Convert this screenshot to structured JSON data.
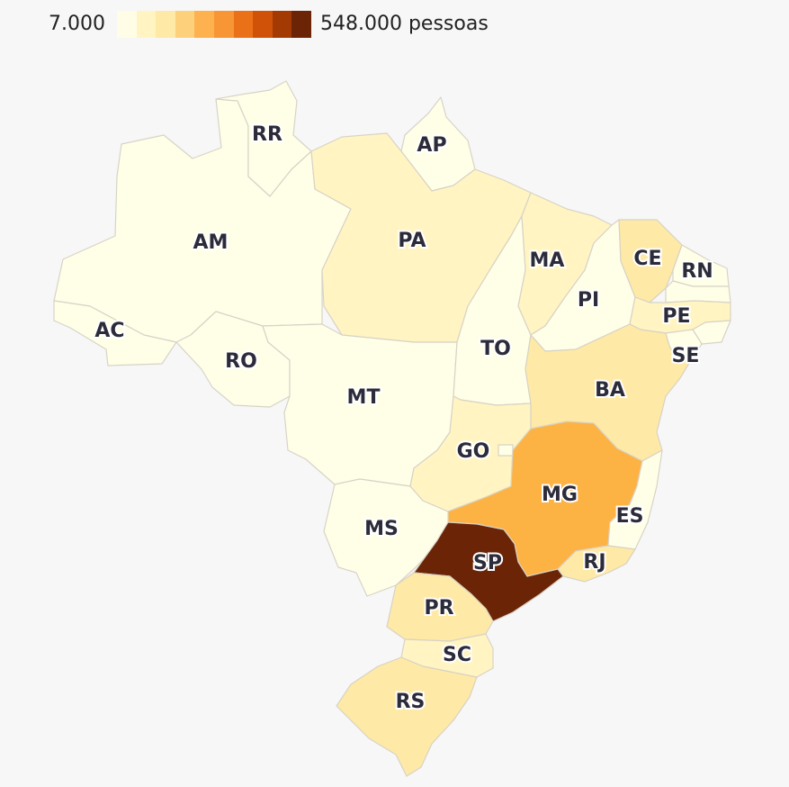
{
  "legend": {
    "min_label": "7.000",
    "max_label": "548.000 pessoas",
    "scale_colors": [
      "#fffde6",
      "#fff4c2",
      "#fee9a6",
      "#fdd17c",
      "#fdb24f",
      "#f89534",
      "#ea7117",
      "#cf5208",
      "#a33a04",
      "#6b2406"
    ]
  },
  "map": {
    "states": [
      {
        "code": "AM",
        "label": "AM",
        "color": "#ffffe8"
      },
      {
        "code": "RR",
        "label": "RR",
        "color": "#ffffe8"
      },
      {
        "code": "AP",
        "label": "AP",
        "color": "#ffffe8"
      },
      {
        "code": "PA",
        "label": "PA",
        "color": "#fff4c2"
      },
      {
        "code": "AC",
        "label": "AC",
        "color": "#ffffe8"
      },
      {
        "code": "RO",
        "label": "RO",
        "color": "#ffffe8"
      },
      {
        "code": "MT",
        "label": "MT",
        "color": "#ffffe8"
      },
      {
        "code": "MS",
        "label": "MS",
        "color": "#ffffe8"
      },
      {
        "code": "TO",
        "label": "TO",
        "color": "#ffffe8"
      },
      {
        "code": "MA",
        "label": "MA",
        "color": "#fff4c2"
      },
      {
        "code": "PI",
        "label": "PI",
        "color": "#ffffe8"
      },
      {
        "code": "CE",
        "label": "CE",
        "color": "#fee9a6"
      },
      {
        "code": "RN",
        "label": "RN",
        "color": "#ffffe8"
      },
      {
        "code": "PB",
        "label": "",
        "color": "#ffffe8"
      },
      {
        "code": "PE",
        "label": "PE",
        "color": "#fff4c2"
      },
      {
        "code": "AL",
        "label": "",
        "color": "#ffffe8"
      },
      {
        "code": "SE",
        "label": "SE",
        "color": "#ffffe8"
      },
      {
        "code": "BA",
        "label": "BA",
        "color": "#fee9a6"
      },
      {
        "code": "GO",
        "label": "GO",
        "color": "#fff4c2"
      },
      {
        "code": "DF",
        "label": "",
        "color": "#ffffe8"
      },
      {
        "code": "MG",
        "label": "MG",
        "color": "#fdb244"
      },
      {
        "code": "ES",
        "label": "ES",
        "color": "#ffffe8"
      },
      {
        "code": "RJ",
        "label": "RJ",
        "color": "#fee9a6"
      },
      {
        "code": "SP",
        "label": "SP",
        "color": "#6b2406"
      },
      {
        "code": "PR",
        "label": "PR",
        "color": "#fee9a6"
      },
      {
        "code": "SC",
        "label": "SC",
        "color": "#fff4c2"
      },
      {
        "code": "RS",
        "label": "RS",
        "color": "#fee9a6"
      }
    ]
  }
}
